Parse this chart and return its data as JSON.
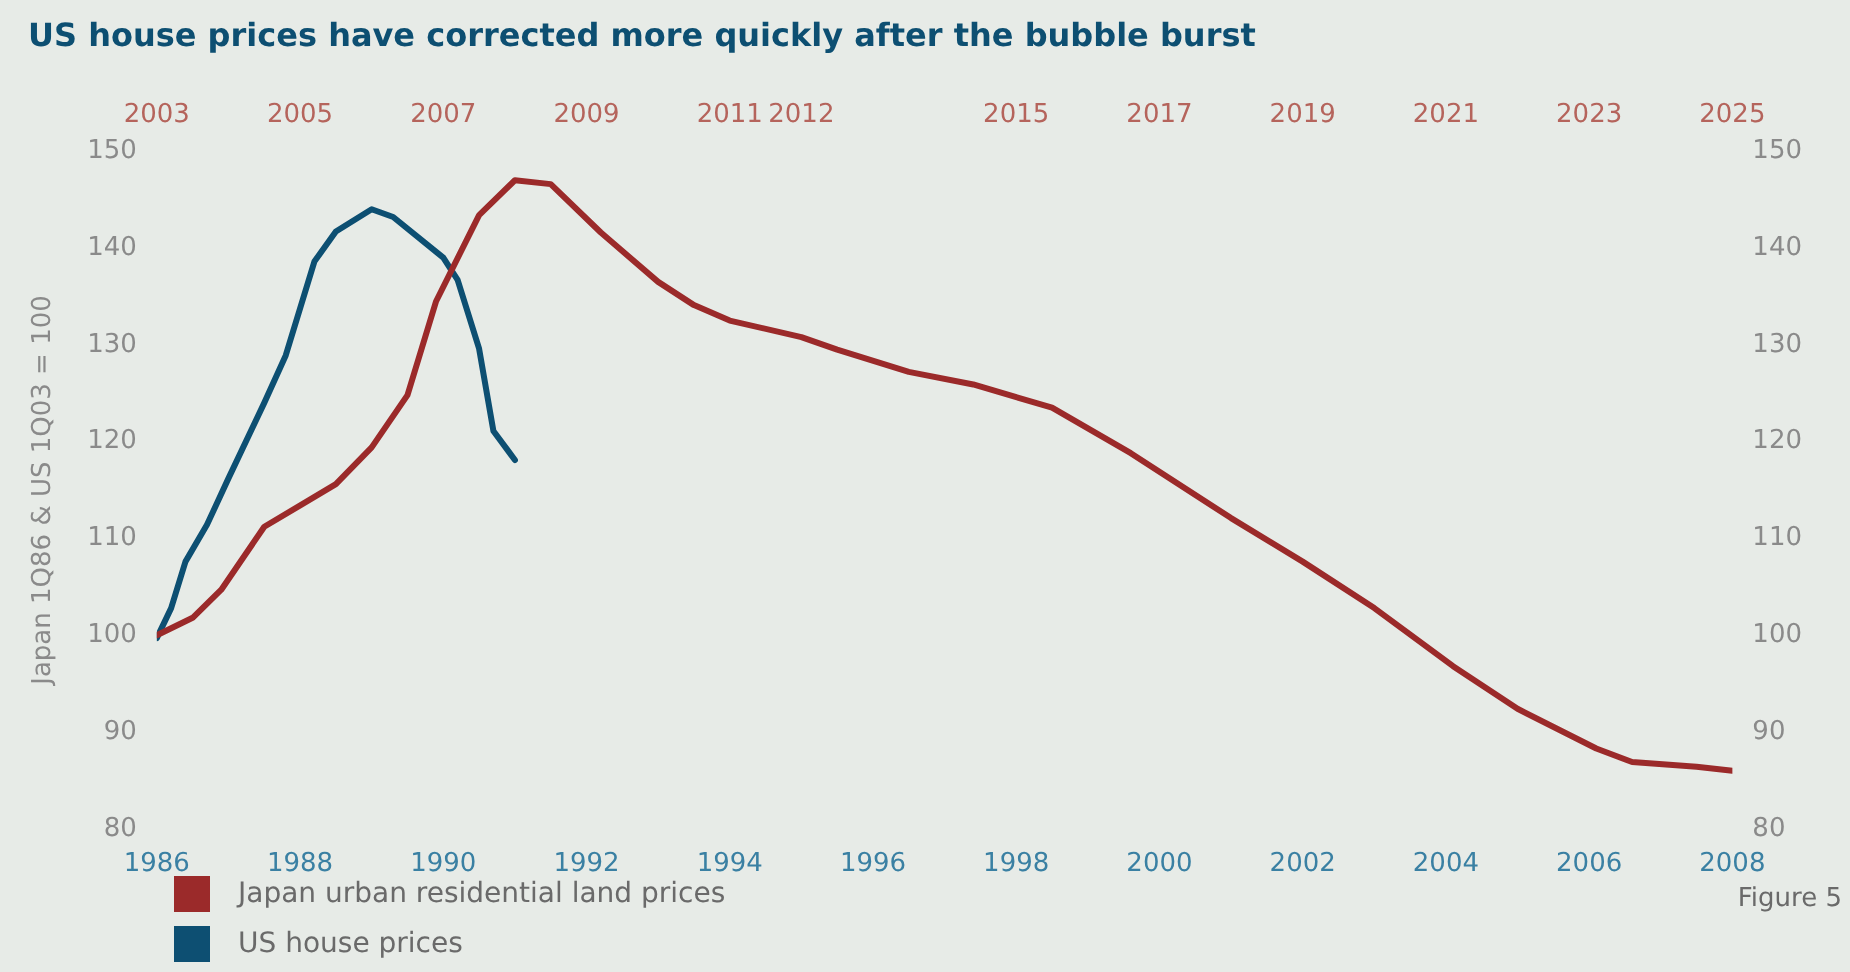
{
  "chart_data": {
    "type": "line",
    "title": "US house prices have corrected more quickly after the bubble burst",
    "ylabel": "Japan 1Q86 & US 1Q03 = 100",
    "xlim": [
      1986,
      2008
    ],
    "xticks": [
      1986,
      1988,
      1990,
      1992,
      1994,
      1996,
      1998,
      2000,
      2002,
      2004,
      2006,
      2008
    ],
    "x2lim": [
      2003,
      2025
    ],
    "x2ticks": [
      2003,
      2005,
      2007,
      2009,
      2011,
      2012,
      2015,
      2017,
      2019,
      2021,
      2023,
      2025
    ],
    "ylim": [
      80,
      150
    ],
    "yticks": [
      80,
      90,
      100,
      110,
      120,
      130,
      140,
      150
    ],
    "y2lim": [
      80,
      150
    ],
    "y2ticks": [
      80,
      90,
      100,
      110,
      120,
      130,
      140,
      150
    ],
    "grid": false,
    "legend": "bottom left",
    "marker": "none",
    "line_style": "solid",
    "annotations": [
      "Figure 5"
    ],
    "series": [
      {
        "name": "Japan urban residential land prices",
        "color": "#9b2a2a",
        "x": [
          1986,
          1986.5,
          1986.9,
          1987.5,
          1988.5,
          1989,
          1989.5,
          1989.9,
          1990.5,
          1991,
          1991.5,
          1992.2,
          1993,
          1993.5,
          1994,
          1995,
          1995.5,
          1996.5,
          1997.4,
          1998.5,
          1999.6,
          2001,
          2002,
          2003,
          2004.1,
          2005,
          2006.1,
          2006.6,
          2007.5,
          2008
        ],
        "values": [
          100,
          101.8,
          104.7,
          111.2,
          115.6,
          119.4,
          124.8,
          134.5,
          143.4,
          147,
          146.6,
          141.6,
          136.5,
          134.1,
          132.5,
          130.8,
          129.5,
          127.2,
          125.9,
          123.5,
          118.8,
          112.1,
          107.6,
          102.8,
          96.8,
          92.4,
          88.3,
          86.9,
          86.4,
          86
        ]
      },
      {
        "name": "US house prices",
        "color": "#0d4f72",
        "x": [
          1986,
          1986.2,
          1986.4,
          1986.7,
          1987,
          1987.5,
          1987.8,
          1988.2,
          1988.5,
          1989,
          1989.3,
          1990,
          1990.2,
          1990.5,
          1990.7,
          1991
        ],
        "values": [
          99.7,
          102.8,
          107.6,
          111.4,
          116.2,
          124,
          128.9,
          138.6,
          141.7,
          144,
          143.2,
          139,
          136.7,
          129.6,
          121.1,
          118.1
        ]
      }
    ]
  }
}
